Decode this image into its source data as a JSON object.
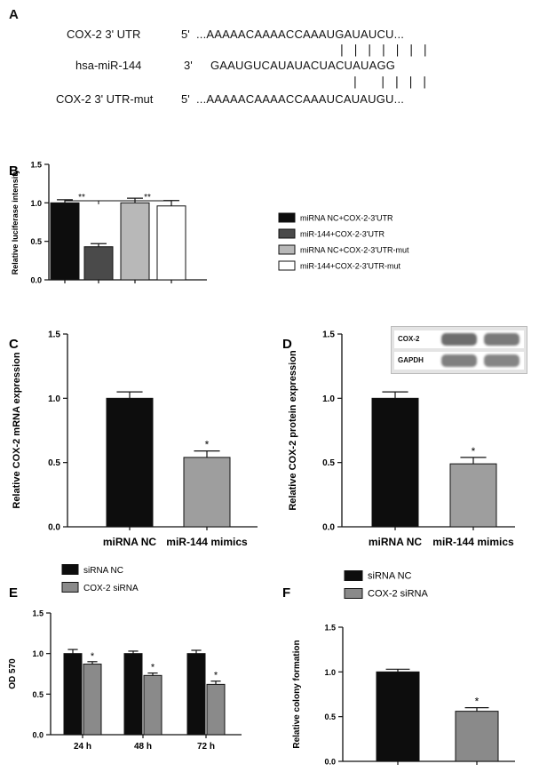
{
  "panelA": {
    "label": "A",
    "rows": [
      {
        "name": "COX-2 3' UTR",
        "end": "5'",
        "seq": "...AAAAACAAAACCAAAUGAUAUCU..."
      },
      {
        "name": "hsa-miR-144",
        "end": "3'",
        "seq": "GAAUGUCAUAUACUACUAUAGG"
      },
      {
        "name": "COX-2 3' UTR-mut",
        "end": "5'",
        "seq": "...AAAAACAAAACCAAAUCAUAUGU..."
      }
    ],
    "pairs_top": "| | | | | | |",
    "pairs_bottom": "|   | | | |"
  },
  "panelD_blot": {
    "bands": [
      "COX-2",
      "GAPDH"
    ]
  },
  "chart_data": [
    {
      "id": "B",
      "type": "bar",
      "panel_label": "B",
      "categories": [
        "miRNA NC+COX-2-3'UTR",
        "miR-144+COX-2-3'UTR",
        "miRNA NC+COX-2-3'UTR-mut",
        "miR-144+COX-2-3'UTR-mut"
      ],
      "values": [
        1.0,
        0.43,
        1.0,
        0.96
      ],
      "errors": [
        0.04,
        0.04,
        0.06,
        0.07
      ],
      "colors": [
        "#0d0d0d",
        "#4a4a4a",
        "#b8b8b8",
        "#ffffff"
      ],
      "ylabel": "Relative luciferase intensity",
      "ylim": [
        0,
        1.5
      ],
      "yticks": [
        "0.0",
        "0.5",
        "1.0",
        "1.5"
      ],
      "legend": [
        "miRNA NC+COX-2-3'UTR",
        "miR-144+COX-2-3'UTR",
        "miRNA NC+COX-2-3'UTR-mut",
        "miR-144+COX-2-3'UTR-mut"
      ],
      "legend_position": "right",
      "annotations": [
        "**",
        "**"
      ]
    },
    {
      "id": "C",
      "type": "bar",
      "panel_label": "C",
      "categories": [
        "miRNA NC",
        "miR-144 mimics"
      ],
      "values": [
        1.0,
        0.54
      ],
      "errors": [
        0.05,
        0.05
      ],
      "colors": [
        "#0d0d0d",
        "#9e9e9e"
      ],
      "ylabel": "Relative COX-2 mRNA expression",
      "ylim": [
        0,
        1.5
      ],
      "yticks": [
        "0.0",
        "0.5",
        "1.0",
        "1.5"
      ],
      "annotations": [
        "*"
      ]
    },
    {
      "id": "D",
      "type": "bar",
      "panel_label": "D",
      "categories": [
        "miRNA NC",
        "miR-144 mimics"
      ],
      "values": [
        1.0,
        0.49
      ],
      "errors": [
        0.05,
        0.05
      ],
      "colors": [
        "#0d0d0d",
        "#9e9e9e"
      ],
      "ylabel": "Relative COX-2 protein expression",
      "ylim": [
        0,
        1.5
      ],
      "yticks": [
        "0.0",
        "0.5",
        "1.0",
        "1.5"
      ],
      "annotations": [
        "*"
      ]
    },
    {
      "id": "E",
      "type": "bar",
      "panel_label": "E",
      "categories": [
        "24 h",
        "48 h",
        "72 h"
      ],
      "series": [
        {
          "name": "siRNA NC",
          "values": [
            1.0,
            1.0,
            1.0
          ],
          "errors": [
            0.05,
            0.03,
            0.04
          ],
          "color": "#0d0d0d"
        },
        {
          "name": "COX-2 siRNA",
          "values": [
            0.87,
            0.73,
            0.62
          ],
          "errors": [
            0.03,
            0.03,
            0.04
          ],
          "color": "#8a8a8a"
        }
      ],
      "ylabel": "OD 570",
      "ylim": [
        0,
        1.5
      ],
      "yticks": [
        "0.0",
        "0.5",
        "1.0",
        "1.5"
      ],
      "legend_position": "top-left",
      "annotations": [
        "*",
        "*",
        "*"
      ]
    },
    {
      "id": "F",
      "type": "bar",
      "panel_label": "F",
      "categories": [
        "siRNA NC",
        "COX-2 siRNA"
      ],
      "values": [
        1.0,
        0.56
      ],
      "errors": [
        0.03,
        0.04
      ],
      "colors": [
        "#0d0d0d",
        "#8a8a8a"
      ],
      "ylabel": "Relative colony formation",
      "ylim": [
        0,
        1.5
      ],
      "yticks": [
        "0.0",
        "0.5",
        "1.0",
        "1.5"
      ],
      "legend": [
        "siRNA NC",
        "COX-2 siRNA"
      ],
      "legend_position": "top-left",
      "annotations": [
        "*"
      ]
    }
  ]
}
